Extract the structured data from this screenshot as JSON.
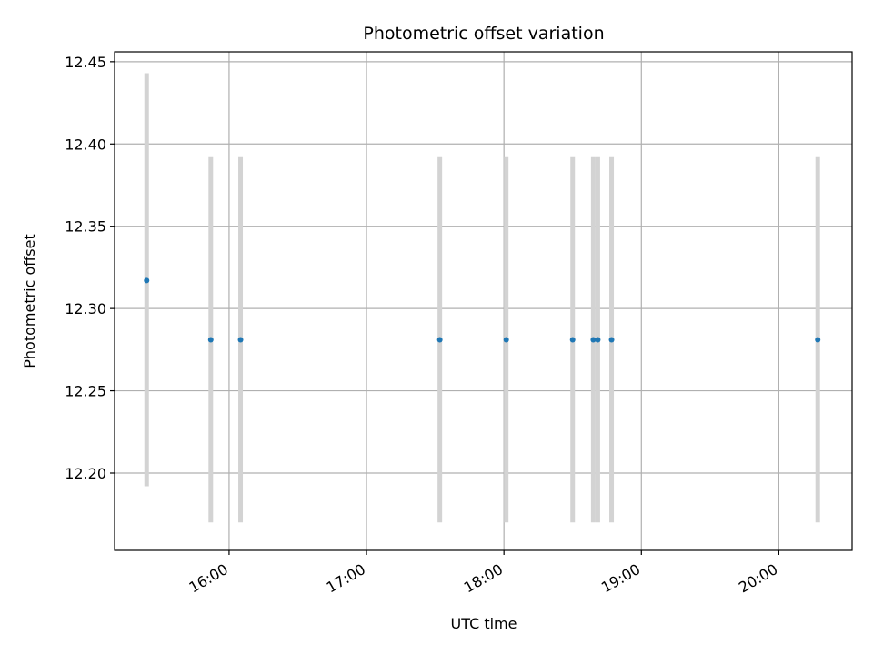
{
  "chart_data": {
    "type": "scatter",
    "title": "Photometric offset variation",
    "xlabel": "UTC time",
    "ylabel": "Photometric offset",
    "xlim": [
      "15:10",
      "20:32"
    ],
    "ylim": [
      12.153,
      12.456
    ],
    "x_ticks": [
      "16:00",
      "17:00",
      "18:00",
      "19:00",
      "20:00"
    ],
    "y_ticks": [
      "12.20",
      "12.25",
      "12.30",
      "12.35",
      "12.40",
      "12.45"
    ],
    "grid": true,
    "colors": {
      "point": "#1f77b4",
      "errorbar": "#d3d3d3",
      "grid": "#b0b0b0"
    },
    "points": [
      {
        "x": "15:24",
        "y": 12.317,
        "ylow": 12.192,
        "yhigh": 12.443
      },
      {
        "x": "15:52",
        "y": 12.281,
        "ylow": 12.17,
        "yhigh": 12.392
      },
      {
        "x": "16:05",
        "y": 12.281,
        "ylow": 12.17,
        "yhigh": 12.392
      },
      {
        "x": "17:32",
        "y": 12.281,
        "ylow": 12.17,
        "yhigh": 12.392
      },
      {
        "x": "18:01",
        "y": 12.281,
        "ylow": 12.17,
        "yhigh": 12.392
      },
      {
        "x": "18:30",
        "y": 12.281,
        "ylow": 12.17,
        "yhigh": 12.392
      },
      {
        "x": "18:39",
        "y": 12.281,
        "ylow": 12.17,
        "yhigh": 12.392
      },
      {
        "x": "18:41",
        "y": 12.281,
        "ylow": 12.17,
        "yhigh": 12.392
      },
      {
        "x": "18:47",
        "y": 12.281,
        "ylow": 12.17,
        "yhigh": 12.392
      },
      {
        "x": "20:17",
        "y": 12.281,
        "ylow": 12.17,
        "yhigh": 12.392
      }
    ]
  }
}
